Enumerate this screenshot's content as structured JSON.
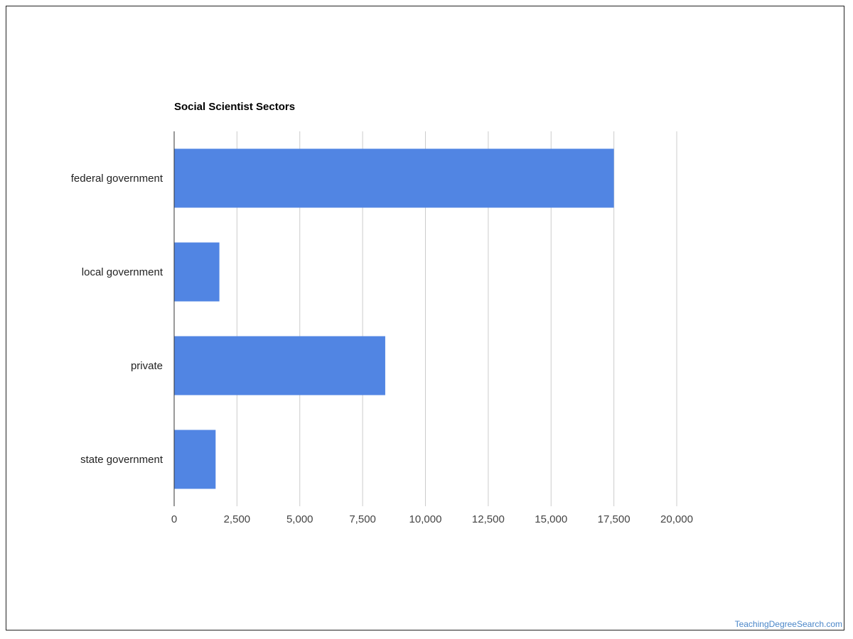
{
  "chart_data": {
    "type": "bar",
    "orientation": "horizontal",
    "title": "Social Scientist Sectors",
    "categories": [
      "federal government",
      "local government",
      "private",
      "state government"
    ],
    "values": [
      17500,
      1800,
      8400,
      1650
    ],
    "xlim": [
      0,
      20000
    ],
    "xticks": [
      0,
      2500,
      5000,
      7500,
      10000,
      12500,
      15000,
      17500,
      20000
    ],
    "xtick_labels": [
      "0",
      "2,500",
      "5,000",
      "7,500",
      "10,000",
      "12,500",
      "15,000",
      "17,500",
      "20,000"
    ],
    "xlabel": "",
    "ylabel": "",
    "grid": true,
    "legend": "none",
    "bar_color": "#5185e3",
    "grid_color": "#cccccc"
  },
  "watermark": "TeachingDegreeSearch.com"
}
